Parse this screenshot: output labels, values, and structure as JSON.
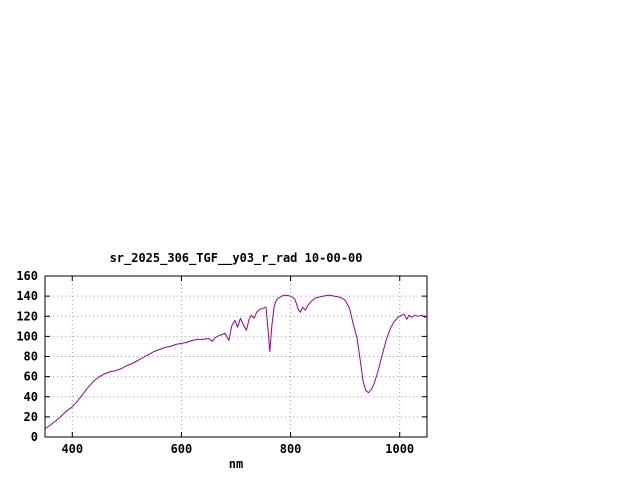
{
  "page": {
    "background_color": "#ffffff"
  },
  "chart_data": {
    "type": "line",
    "title": "sr_2025_306_TGF__y03_r_rad 10-00-00",
    "xlabel": "nm",
    "ylabel": "",
    "xlim": [
      350,
      1050
    ],
    "ylim": [
      0,
      160
    ],
    "xticks": [
      400,
      600,
      800,
      1000
    ],
    "yticks": [
      0,
      20,
      40,
      60,
      80,
      100,
      120,
      140,
      160
    ],
    "grid": true,
    "grid_color": "#a0a0a0",
    "border_color": "#000000",
    "line_color": "#990099",
    "series": [
      {
        "name": "sr_2025_306_TGF__y03_r_rad",
        "x": [
          350,
          360,
          370,
          380,
          390,
          400,
          410,
          420,
          430,
          440,
          450,
          460,
          470,
          480,
          490,
          500,
          510,
          520,
          530,
          540,
          550,
          560,
          570,
          580,
          590,
          600,
          610,
          620,
          630,
          640,
          650,
          656,
          662,
          670,
          680,
          687,
          692,
          698,
          703,
          708,
          714,
          719,
          724,
          728,
          733,
          738,
          744,
          750,
          755,
          759,
          762,
          766,
          770,
          774,
          778,
          784,
          790,
          800,
          808,
          814,
          818,
          822,
          827,
          832,
          838,
          845,
          852,
          860,
          870,
          880,
          890,
          900,
          908,
          915,
          922,
          928,
          933,
          938,
          943,
          948,
          953,
          960,
          968,
          975,
          983,
          990,
          997,
          1003,
          1008,
          1013,
          1017,
          1022,
          1028,
          1033,
          1040,
          1046,
          1050
        ],
        "y": [
          8,
          12,
          16,
          21,
          26,
          30,
          36,
          43,
          50,
          56,
          60,
          63,
          65,
          66,
          68,
          71,
          73,
          76,
          79,
          82,
          85,
          87,
          89,
          90,
          92,
          93,
          94,
          96,
          97,
          97,
          98,
          95,
          99,
          101,
          103,
          96,
          110,
          116,
          109,
          118,
          111,
          106,
          117,
          121,
          118,
          124,
          127,
          128,
          129,
          105,
          85,
          112,
          130,
          136,
          138,
          140,
          141,
          140,
          137,
          127,
          124,
          129,
          126,
          131,
          135,
          138,
          139,
          140,
          141,
          140,
          139,
          136,
          128,
          112,
          98,
          75,
          55,
          46,
          44,
          47,
          53,
          65,
          82,
          96,
          108,
          115,
          119,
          121,
          122,
          117,
          121,
          119,
          121,
          120,
          121,
          119,
          120
        ]
      }
    ]
  }
}
